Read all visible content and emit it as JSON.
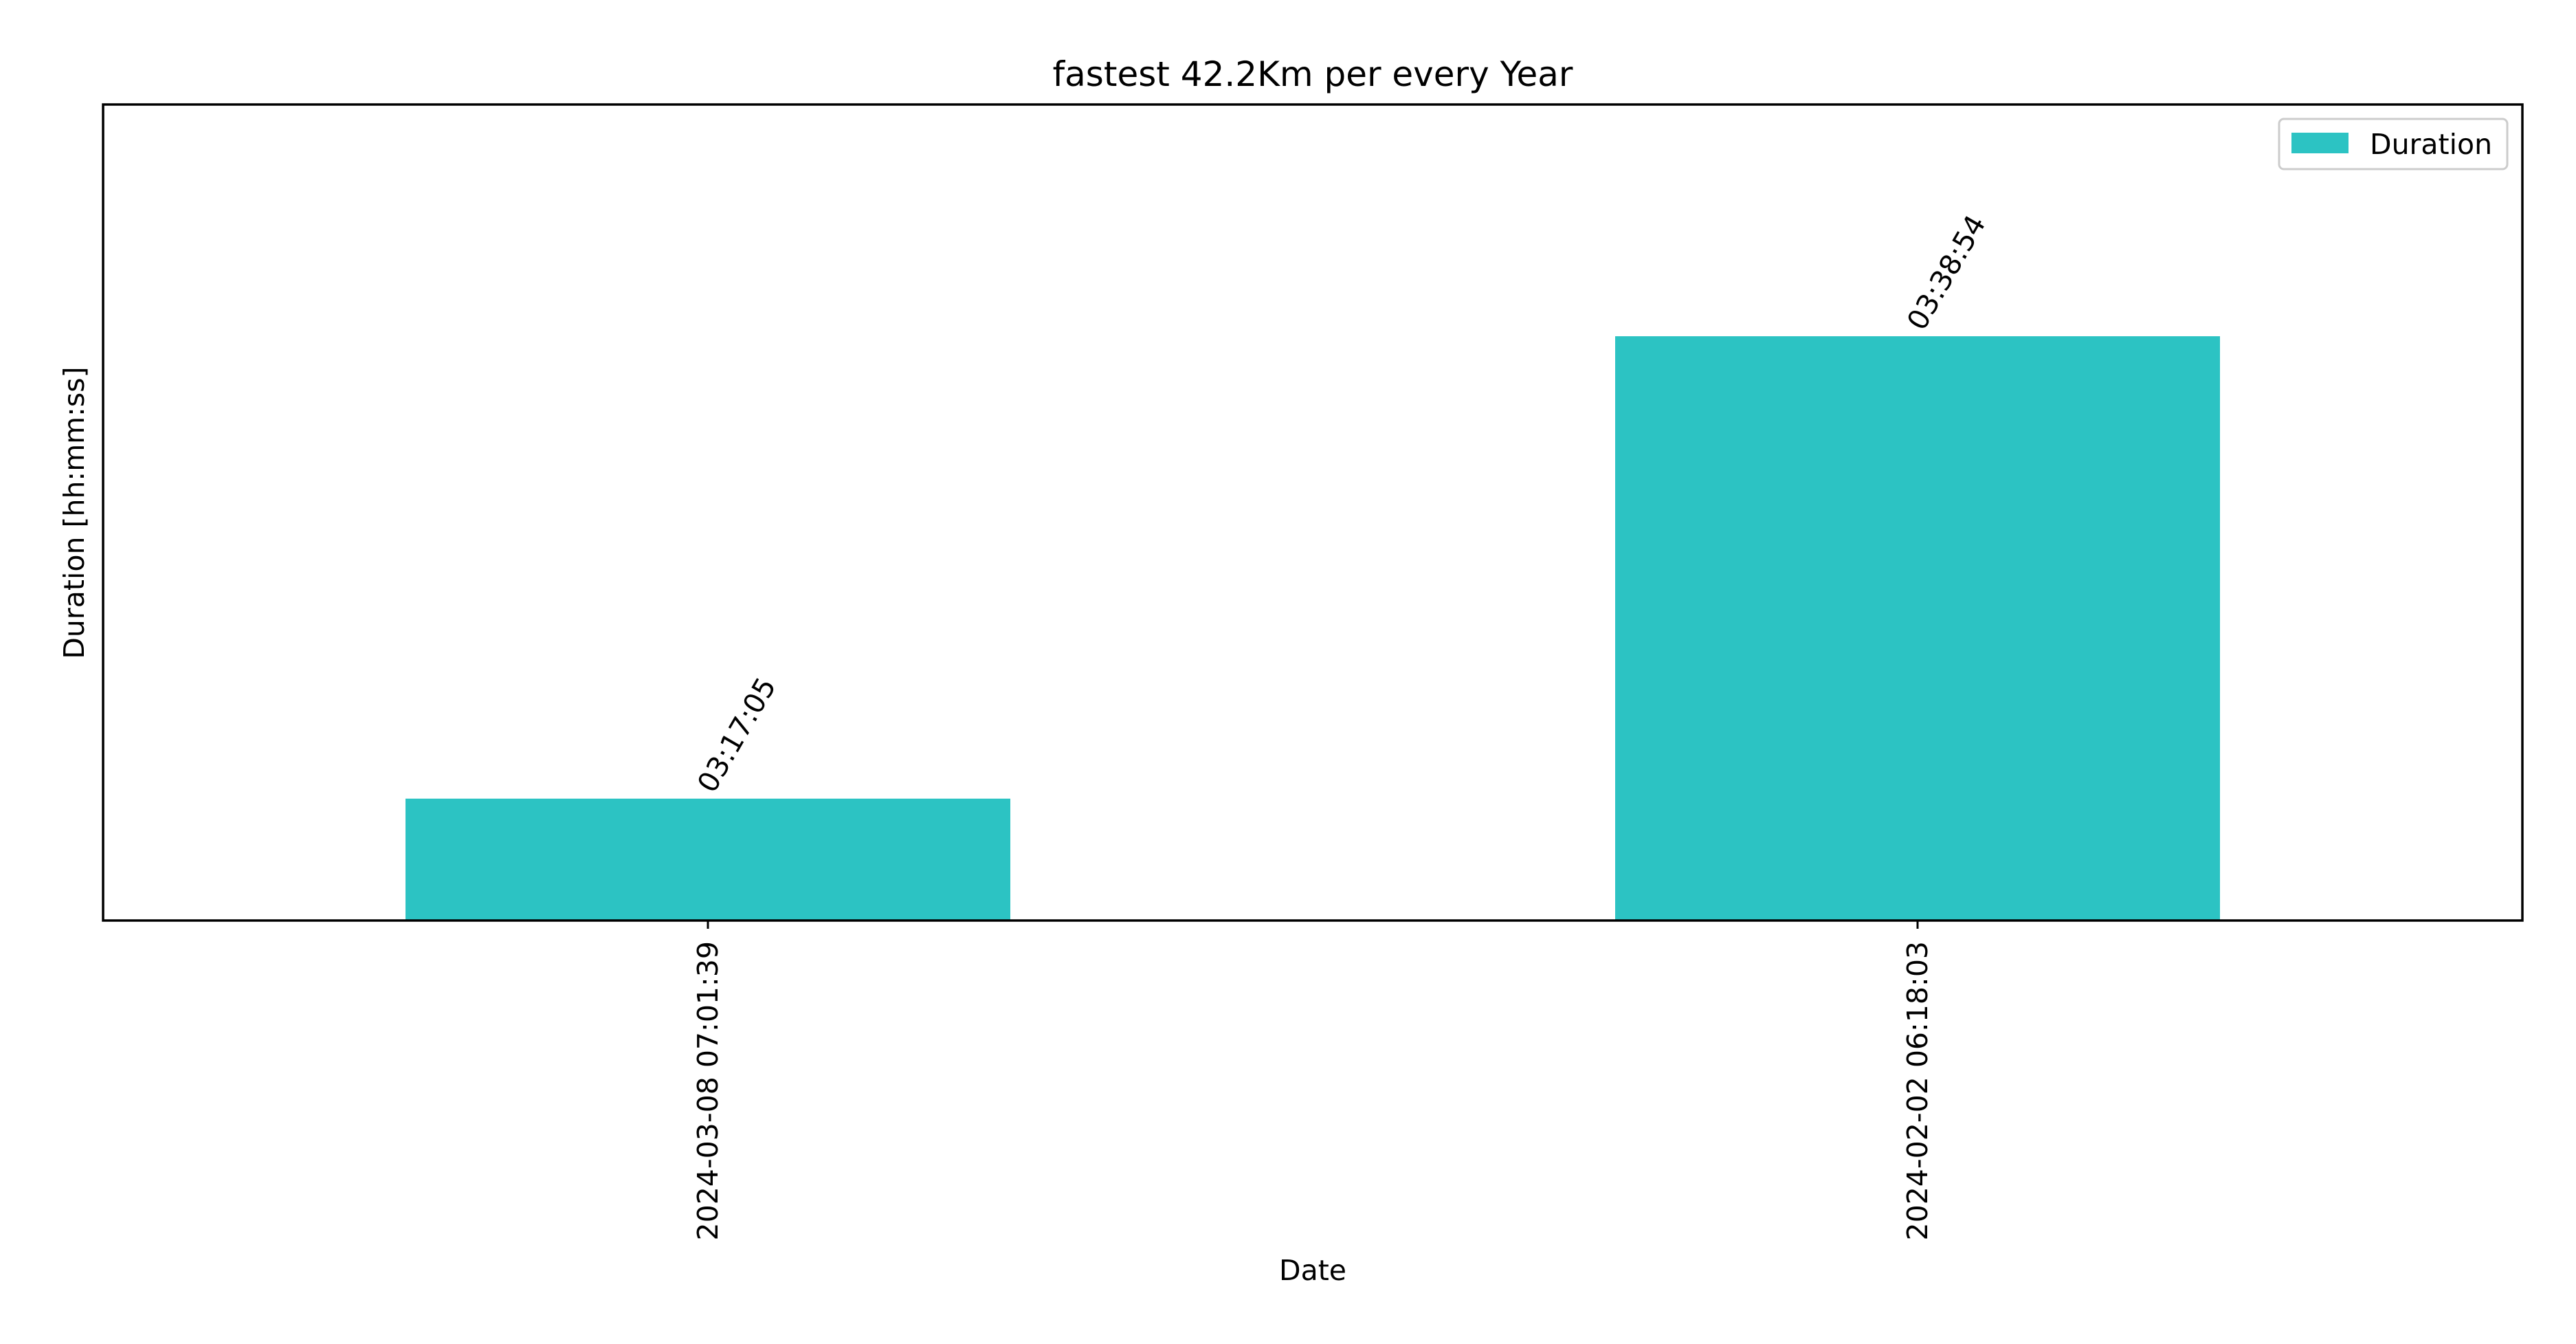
{
  "chart_data": {
    "type": "bar",
    "title": "fastest 42.2Km per every Year",
    "xlabel": "Date",
    "ylabel": "Duration [hh:mm:ss]",
    "categories": [
      "2024-03-08 07:01:39",
      "2024-02-02 06:18:03"
    ],
    "series": [
      {
        "name": "Duration",
        "values": [
          "03:17:05",
          "03:38:54"
        ],
        "values_seconds": [
          11825,
          13134
        ],
        "color": "#2CC3C3"
      }
    ],
    "data_labels": [
      "03:17:05",
      "03:38:54"
    ],
    "ylim_seconds": [
      11480,
      13790
    ],
    "yticks_visible": false,
    "grid": false,
    "legend": {
      "position": "top-right",
      "entries": [
        "Duration"
      ]
    },
    "colors": {
      "bar": "#2CC3C3",
      "axes": "#000000",
      "background": "#FFFFFF"
    }
  }
}
